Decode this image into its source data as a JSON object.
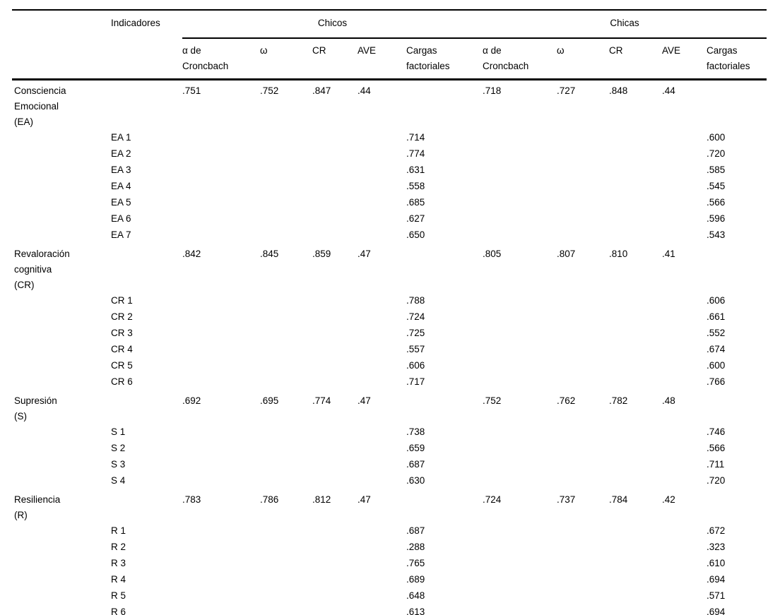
{
  "colors": {
    "text": "#000000",
    "background": "#ffffff",
    "rule": "#000000"
  },
  "table": {
    "indicadores_label": "Indicadores",
    "groups": [
      {
        "label": "Chicos"
      },
      {
        "label": "Chicas"
      }
    ],
    "metric_headers": [
      "α de Croncbach",
      "ω",
      "CR",
      "AVE",
      "Cargas factoriales"
    ],
    "blocks": [
      {
        "construct": "Consciencia Emocional (EA)",
        "chicos": {
          "alpha": ".751",
          "omega": ".752",
          "cr": ".847",
          "ave": ".44"
        },
        "chicas": {
          "alpha": ".718",
          "omega": ".727",
          "cr": ".848",
          "ave": ".44"
        },
        "items": [
          {
            "label": "EA 1",
            "chicos": ".714",
            "chicas": ".600"
          },
          {
            "label": "EA 2",
            "chicos": ".774",
            "chicas": ".720"
          },
          {
            "label": "EA 3",
            "chicos": ".631",
            "chicas": ".585"
          },
          {
            "label": "EA 4",
            "chicos": ".558",
            "chicas": ".545"
          },
          {
            "label": "EA 5",
            "chicos": ".685",
            "chicas": ".566"
          },
          {
            "label": "EA 6",
            "chicos": ".627",
            "chicas": ".596"
          },
          {
            "label": "EA 7",
            "chicos": ".650",
            "chicas": ".543"
          }
        ]
      },
      {
        "construct": "Revaloración cognitiva (CR)",
        "chicos": {
          "alpha": ".842",
          "omega": ".845",
          "cr": ".859",
          "ave": ".47"
        },
        "chicas": {
          "alpha": ".805",
          "omega": ".807",
          "cr": ".810",
          "ave": ".41"
        },
        "items": [
          {
            "label": "CR 1",
            "chicos": ".788",
            "chicas": ".606"
          },
          {
            "label": "CR 2",
            "chicos": ".724",
            "chicas": ".661"
          },
          {
            "label": "CR 3",
            "chicos": ".725",
            "chicas": ".552"
          },
          {
            "label": "CR 4",
            "chicos": ".557",
            "chicas": ".674"
          },
          {
            "label": "CR 5",
            "chicos": ".606",
            "chicas": ".600"
          },
          {
            "label": "CR 6",
            "chicos": ".717",
            "chicas": ".766"
          }
        ]
      },
      {
        "construct": "Supresión (S)",
        "chicos": {
          "alpha": ".692",
          "omega": ".695",
          "cr": ".774",
          "ave": ".47"
        },
        "chicas": {
          "alpha": ".752",
          "omega": ".762",
          "cr": ".782",
          "ave": ".48"
        },
        "items": [
          {
            "label": "S 1",
            "chicos": ".738",
            "chicas": ".746"
          },
          {
            "label": "S 2",
            "chicos": ".659",
            "chicas": ".566"
          },
          {
            "label": "S 3",
            "chicos": ".687",
            "chicas": ".711"
          },
          {
            "label": "S 4",
            "chicos": ".630",
            "chicas": ".720"
          }
        ]
      },
      {
        "construct": "Resiliencia (R)",
        "chicos": {
          "alpha": ".783",
          "omega": ".786",
          "cr": ".812",
          "ave": ".47"
        },
        "chicas": {
          "alpha": ".724",
          "omega": ".737",
          "cr": ".784",
          "ave": ".42"
        },
        "items": [
          {
            "label": "R 1",
            "chicos": ".687",
            "chicas": ".672"
          },
          {
            "label": "R 2",
            "chicos": ".288",
            "chicas": ".323"
          },
          {
            "label": "R 3",
            "chicos": ".765",
            "chicas": ".610"
          },
          {
            "label": "R 4",
            "chicos": ".689",
            "chicas": ".694"
          },
          {
            "label": "R 5",
            "chicos": ".648",
            "chicas": ".571"
          },
          {
            "label": "R 6",
            "chicos": ".613",
            "chicas": ".694"
          }
        ]
      }
    ]
  }
}
